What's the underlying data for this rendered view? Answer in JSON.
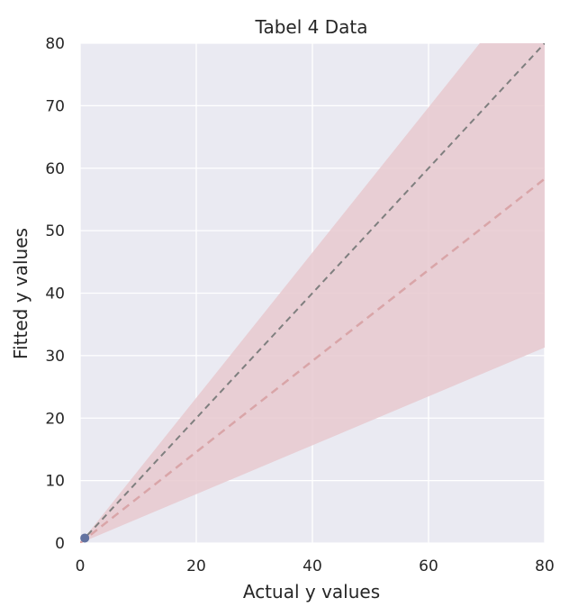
{
  "chart_data": {
    "type": "scatter",
    "title": "Tabel 4 Data",
    "xlabel": "Actual y values",
    "ylabel": "Fitted y values",
    "xlim": [
      0,
      80
    ],
    "ylim": [
      0,
      80
    ],
    "x_ticks": [
      0,
      20,
      40,
      60,
      80
    ],
    "y_ticks": [
      0,
      10,
      20,
      30,
      40,
      50,
      60,
      70,
      80
    ],
    "grid": true,
    "points": [
      {
        "x": 0.8,
        "y": 0.8
      }
    ],
    "identity_line": {
      "x": [
        0,
        80
      ],
      "y": [
        0,
        80
      ],
      "color": "#7f7f7f",
      "style": "dashed"
    },
    "fit_line": {
      "x": [
        0,
        80
      ],
      "y": [
        0,
        58.3
      ],
      "color": "#d9a5a8",
      "style": "dashed"
    },
    "confidence_band": {
      "x": [
        0,
        80
      ],
      "lower": [
        0,
        31.3
      ],
      "upper": [
        0,
        93
      ],
      "color": "#e8c9cf"
    },
    "colors": {
      "plot_background": "#eaeaf2",
      "grid": "#ffffff",
      "point": "#6272a0"
    }
  }
}
